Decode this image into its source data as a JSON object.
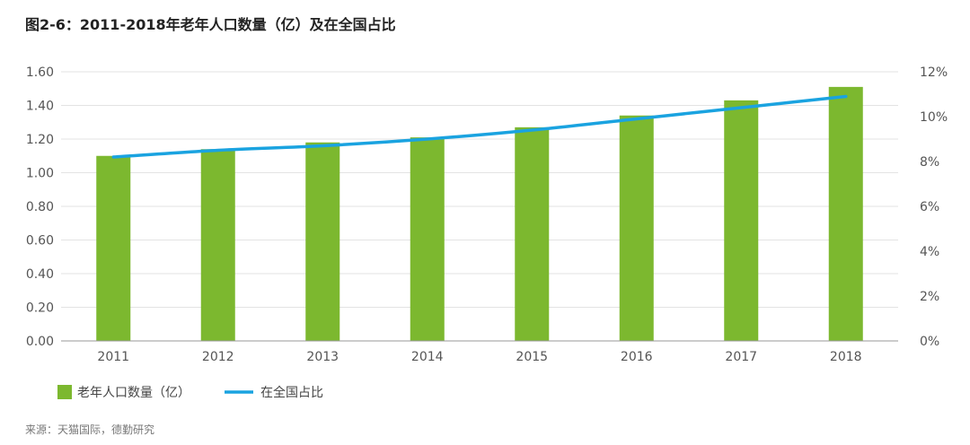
{
  "title": "图2-6：2011-2018年老年人口数量（亿）及在全国占比",
  "source": "来源：天猫国际，德勤研究",
  "chart_data": {
    "type": "bar",
    "categories": [
      "2011",
      "2012",
      "2013",
      "2014",
      "2015",
      "2016",
      "2017",
      "2018"
    ],
    "series": [
      {
        "name": "老年人口数量（亿）",
        "type": "bar",
        "axis": "left",
        "color": "#7cb82f",
        "values": [
          1.1,
          1.14,
          1.18,
          1.21,
          1.27,
          1.34,
          1.43,
          1.51
        ]
      },
      {
        "name": "在全国占比",
        "type": "line",
        "axis": "right",
        "color": "#1aa3e0",
        "values": [
          8.2,
          8.5,
          8.7,
          9.0,
          9.4,
          9.9,
          10.4,
          10.9
        ]
      }
    ],
    "y_left": {
      "min": 0,
      "max": 1.6,
      "ticks": [
        0,
        0.2,
        0.4,
        0.6,
        0.8,
        1.0,
        1.2,
        1.4,
        1.6
      ],
      "tick_labels": [
        "0.00",
        "0.20",
        "0.40",
        "0.60",
        "0.80",
        "1.00",
        "1.20",
        "1.40",
        "1.60"
      ]
    },
    "y_right": {
      "min": 0,
      "max": 12,
      "ticks": [
        0,
        2,
        4,
        6,
        8,
        10,
        12
      ],
      "tick_labels": [
        "0%",
        "2%",
        "4%",
        "6%",
        "8%",
        "10%",
        "12%"
      ]
    },
    "grid": true,
    "legend": "bottom-left"
  }
}
